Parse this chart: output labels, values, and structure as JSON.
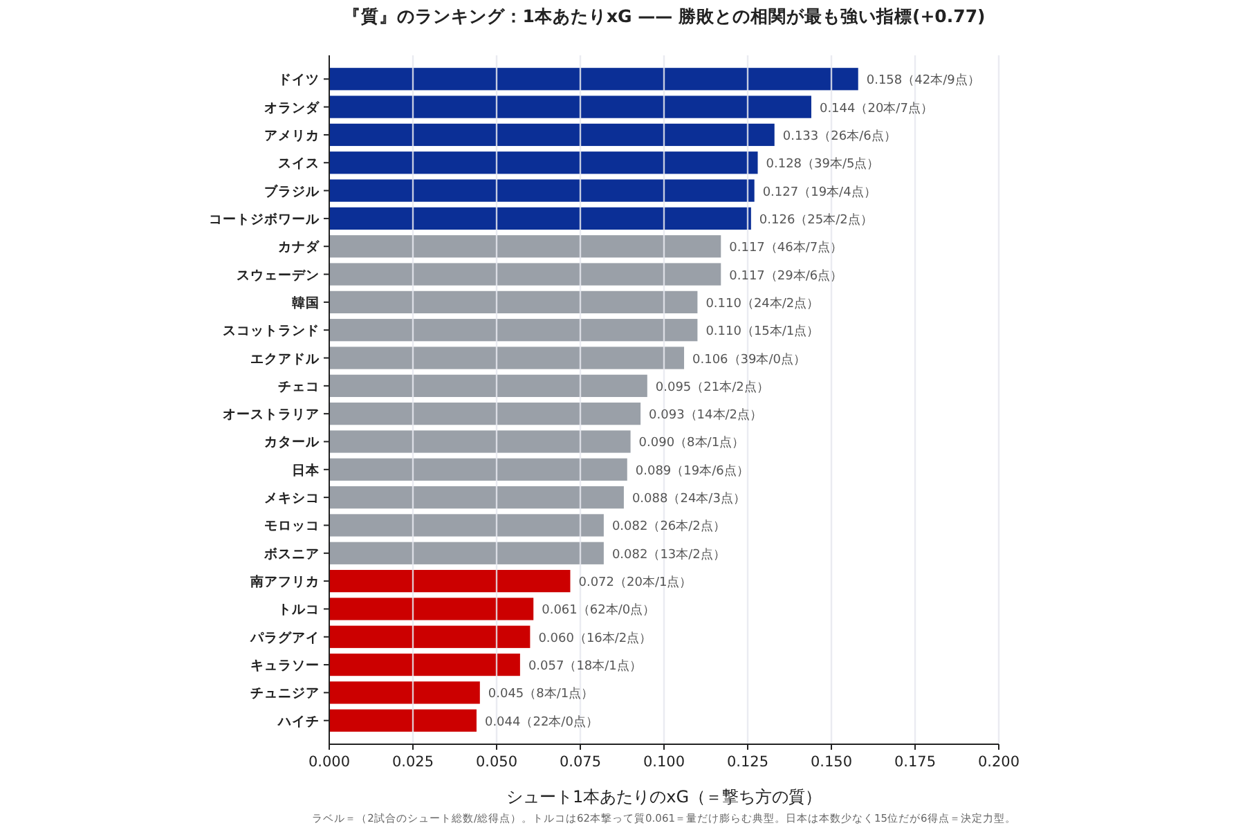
{
  "chart_data": {
    "type": "bar",
    "orientation": "horizontal",
    "title": "『質』のランキング：1本あたりxG —— 勝敗との相関が最も強い指標(+0.77)",
    "xlabel": "シュート1本あたりのxG（＝撃ち方の質）",
    "annotations": [
      "ラベル＝（2試合のシュート総数/総得点）。トルコは62本撃って質0.061＝量だけ膨らむ典型。日本は本数少なく15位だが6得点＝決定力型。"
    ],
    "categories": [
      "ドイツ",
      "オランダ",
      "アメリカ",
      "スイス",
      "ブラジル",
      "コートジボワール",
      "カナダ",
      "スウェーデン",
      "韓国",
      "スコットランド",
      "エクアドル",
      "チェコ",
      "オーストラリア",
      "カタール",
      "日本",
      "メキシコ",
      "モロッコ",
      "ボスニア",
      "南アフリカ",
      "トルコ",
      "パラグアイ",
      "キュラソー",
      "チュニジア",
      "ハイチ"
    ],
    "values": [
      0.158,
      0.144,
      0.133,
      0.128,
      0.127,
      0.126,
      0.117,
      0.117,
      0.11,
      0.11,
      0.106,
      0.095,
      0.093,
      0.09,
      0.089,
      0.088,
      0.082,
      0.082,
      0.072,
      0.061,
      0.06,
      0.057,
      0.045,
      0.044
    ],
    "value_labels": [
      "0.158（42本/9点）",
      "0.144（20本/7点）",
      "0.133（26本/6点）",
      "0.128（39本/5点）",
      "0.127（19本/4点）",
      "0.126（25本/2点）",
      "0.117（46本/7点）",
      "0.117（29本/6点）",
      "0.110（24本/2点）",
      "0.110（15本/1点）",
      "0.106（39本/0点）",
      "0.095（21本/2点）",
      "0.093（14本/2点）",
      "0.090（8本/1点）",
      "0.089（19本/6点）",
      "0.088（24本/3点）",
      "0.082（26本/2点）",
      "0.082（13本/2点）",
      "0.072（20本/1点）",
      "0.061（62本/0点）",
      "0.060（16本/2点）",
      "0.057（18本/1点）",
      "0.045（8本/1点）",
      "0.044（22本/0点）"
    ],
    "colors": [
      "#0b2f96",
      "#0b2f96",
      "#0b2f96",
      "#0b2f96",
      "#0b2f96",
      "#0b2f96",
      "#9aa0a8",
      "#9aa0a8",
      "#9aa0a8",
      "#9aa0a8",
      "#9aa0a8",
      "#9aa0a8",
      "#9aa0a8",
      "#9aa0a8",
      "#9aa0a8",
      "#9aa0a8",
      "#9aa0a8",
      "#9aa0a8",
      "#cc0000",
      "#cc0000",
      "#cc0000",
      "#cc0000",
      "#cc0000",
      "#cc0000"
    ],
    "xlim": [
      0,
      0.2
    ],
    "xticks": [
      {
        "value": 0,
        "label": "0.000"
      },
      {
        "value": 0.025,
        "label": "0.025"
      },
      {
        "value": 0.05,
        "label": "0.050"
      },
      {
        "value": 0.075,
        "label": "0.075"
      },
      {
        "value": 0.1,
        "label": "0.100"
      },
      {
        "value": 0.125,
        "label": "0.125"
      },
      {
        "value": 0.15,
        "label": "0.150"
      },
      {
        "value": 0.175,
        "label": "0.175"
      },
      {
        "value": 0.2,
        "label": "0.200"
      }
    ],
    "grid": "x"
  }
}
